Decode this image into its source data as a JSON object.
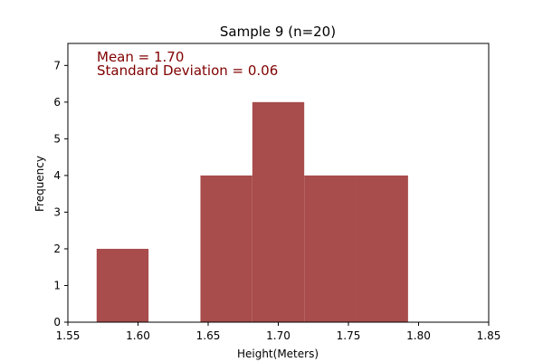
{
  "chart_data": {
    "type": "bar",
    "title": "Sample 9 (n=20)",
    "xlabel": "Height(Meters)",
    "ylabel": "Frequency",
    "xlim": [
      1.55,
      1.85
    ],
    "ylim": [
      0,
      7.6
    ],
    "xticks": [
      "1.55",
      "1.60",
      "1.65",
      "1.70",
      "1.75",
      "1.80",
      "1.85"
    ],
    "yticks": [
      "0",
      "1",
      "2",
      "3",
      "4",
      "5",
      "6",
      "7"
    ],
    "bins": [
      {
        "start": 1.5705,
        "end": 1.6075,
        "count": 2
      },
      {
        "start": 1.6075,
        "end": 1.6445,
        "count": 0
      },
      {
        "start": 1.6445,
        "end": 1.6815,
        "count": 4
      },
      {
        "start": 1.6815,
        "end": 1.7185,
        "count": 6
      },
      {
        "start": 1.7185,
        "end": 1.7555,
        "count": 4
      },
      {
        "start": 1.7555,
        "end": 1.7925,
        "count": 4
      }
    ],
    "bar_color": "#a84c4c",
    "annotations": [
      "Mean = 1.70",
      "Standard Deviation = 0.06"
    ],
    "annotation_color": "#800000",
    "grid": false,
    "legend": false
  }
}
